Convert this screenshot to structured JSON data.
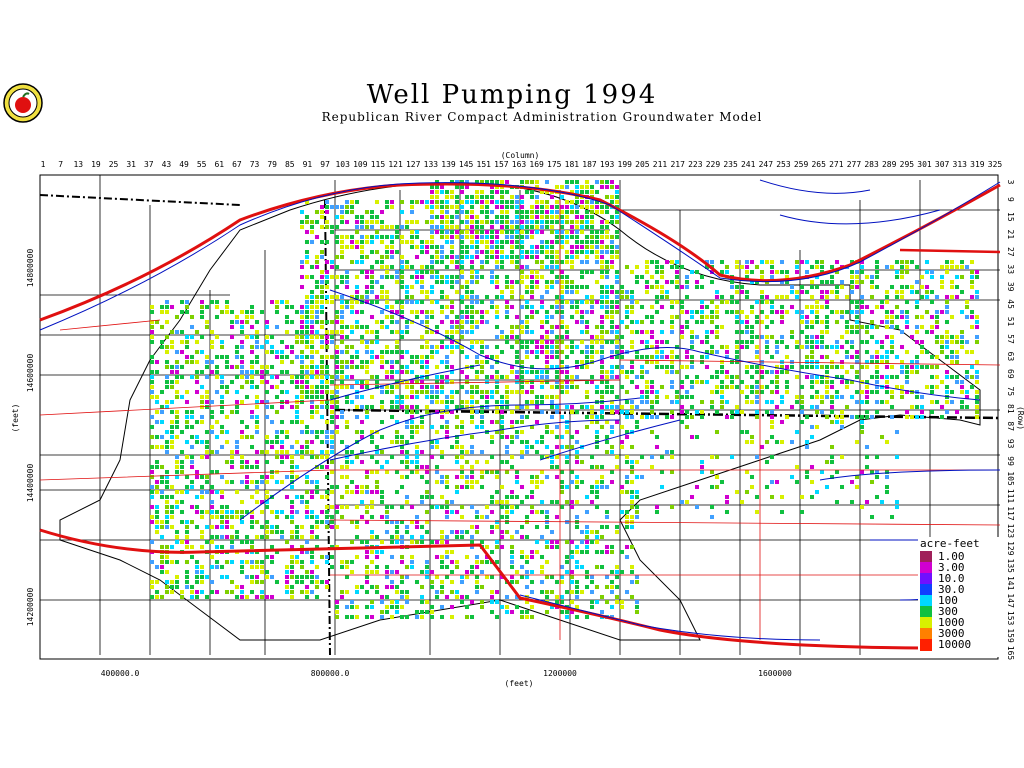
{
  "header": {
    "title": "Well Pumping 1994",
    "subtitle": "Republican River Compact Administration Groundwater Model"
  },
  "axes": {
    "column_label": "(Column)",
    "row_label": "(Row)",
    "x_label": "(feet)",
    "y_label": "(feet)",
    "column_ticks": [
      "1",
      "7",
      "13",
      "19",
      "25",
      "31",
      "37",
      "43",
      "49",
      "55",
      "61",
      "67",
      "73",
      "79",
      "85",
      "91",
      "97",
      "103",
      "109",
      "115",
      "121",
      "127",
      "133",
      "139",
      "145",
      "151",
      "157",
      "163",
      "169",
      "175",
      "181",
      "187",
      "193",
      "199",
      "205",
      "211",
      "217",
      "223",
      "229",
      "235",
      "241",
      "247",
      "253",
      "259",
      "265",
      "271",
      "277",
      "283",
      "289",
      "295",
      "301",
      "307",
      "313",
      "319",
      "325"
    ],
    "row_ticks": [
      "3",
      "9",
      "15",
      "21",
      "27",
      "33",
      "39",
      "45",
      "51",
      "57",
      "63",
      "69",
      "75",
      "81",
      "87",
      "93",
      "99",
      "105",
      "111",
      "117",
      "123",
      "129",
      "135",
      "141",
      "147",
      "153",
      "159",
      "165"
    ],
    "x_ticks": [
      "400000.0",
      "800000.0",
      "1200000",
      "1600000"
    ],
    "y_ticks": [
      "14800000",
      "14600000",
      "14400000",
      "14200000"
    ]
  },
  "legend": {
    "title": "acre-feet",
    "items": [
      {
        "label": "1.00",
        "color": "#a0205a"
      },
      {
        "label": "3.00",
        "color": "#d000d0"
      },
      {
        "label": "10.0",
        "color": "#7010ff"
      },
      {
        "label": "30.0",
        "color": "#1040ff"
      },
      {
        "label": "100",
        "color": "#00d8ff"
      },
      {
        "label": "300",
        "color": "#10c040"
      },
      {
        "label": "1000",
        "color": "#d8f000"
      },
      {
        "label": "3000",
        "color": "#ff8000"
      },
      {
        "label": "10000",
        "color": "#ff2000"
      }
    ]
  },
  "colors": {
    "roads": "#e01010",
    "rivers": "#0010c0",
    "boundaries": "#000000"
  }
}
